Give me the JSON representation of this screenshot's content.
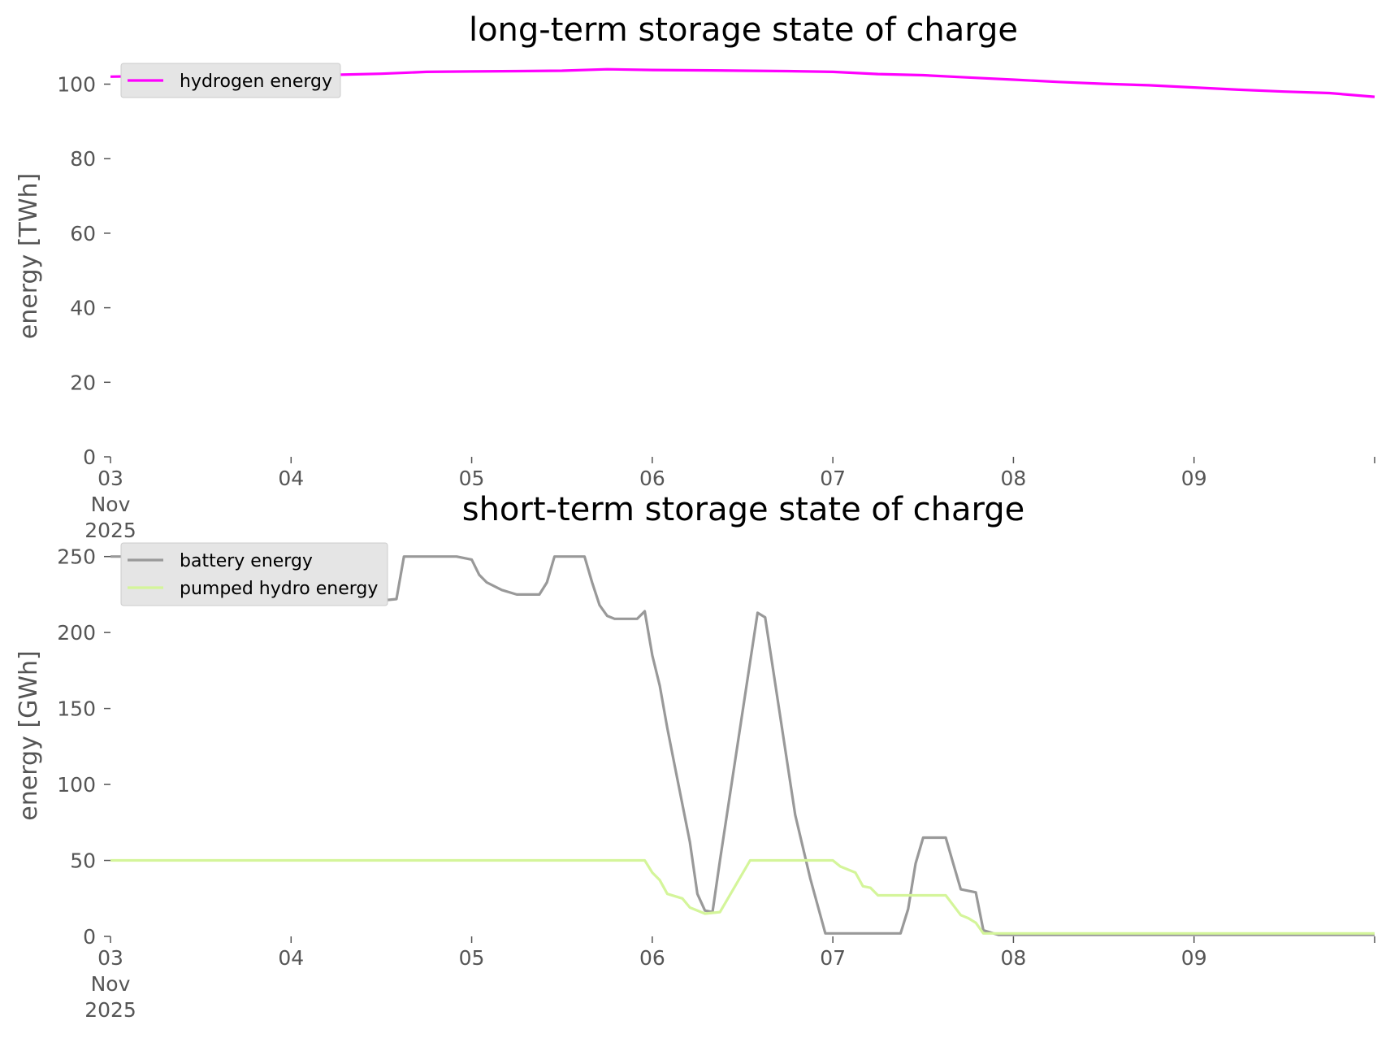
{
  "chart_data": [
    {
      "type": "line",
      "title": "long-term storage state of charge",
      "xlabel": "",
      "ylabel": "energy [TWh]",
      "ylim": [
        0,
        106
      ],
      "yticks": [
        0,
        20,
        40,
        60,
        80,
        100
      ],
      "xlim": [
        "2025-11-03",
        "2025-11-10"
      ],
      "x_ticks": [
        {
          "x": "2025-11-03",
          "label": "03\nNov\n2025"
        },
        {
          "x": "2025-11-04",
          "label": "04"
        },
        {
          "x": "2025-11-05",
          "label": "05"
        },
        {
          "x": "2025-11-06",
          "label": "06"
        },
        {
          "x": "2025-11-07",
          "label": "07"
        },
        {
          "x": "2025-11-08",
          "label": "08"
        },
        {
          "x": "2025-11-09",
          "label": "09"
        },
        {
          "x": "2025-11-10",
          "label": ""
        }
      ],
      "grid": false,
      "legend_position": "top-left",
      "series": [
        {
          "name": "hydrogen energy",
          "color": "#ff00ff",
          "points": [
            [
              "2025-11-03T00:00",
              102.0
            ],
            [
              "2025-11-03T06:00",
              102.2
            ],
            [
              "2025-11-03T12:00",
              102.3
            ],
            [
              "2025-11-03T18:00",
              102.4
            ],
            [
              "2025-11-04T00:00",
              102.4
            ],
            [
              "2025-11-04T06:00",
              102.5
            ],
            [
              "2025-11-04T12:00",
              102.8
            ],
            [
              "2025-11-04T18:00",
              103.3
            ],
            [
              "2025-11-05T00:00",
              103.4
            ],
            [
              "2025-11-05T06:00",
              103.5
            ],
            [
              "2025-11-05T12:00",
              103.6
            ],
            [
              "2025-11-05T18:00",
              104.0
            ],
            [
              "2025-11-06T00:00",
              103.8
            ],
            [
              "2025-11-06T06:00",
              103.7
            ],
            [
              "2025-11-06T12:00",
              103.6
            ],
            [
              "2025-11-06T18:00",
              103.5
            ],
            [
              "2025-11-07T00:00",
              103.3
            ],
            [
              "2025-11-07T06:00",
              102.7
            ],
            [
              "2025-11-07T12:00",
              102.4
            ],
            [
              "2025-11-07T18:00",
              101.8
            ],
            [
              "2025-11-08T00:00",
              101.2
            ],
            [
              "2025-11-08T06:00",
              100.6
            ],
            [
              "2025-11-08T12:00",
              100.1
            ],
            [
              "2025-11-08T18:00",
              99.7
            ],
            [
              "2025-11-09T00:00",
              99.1
            ],
            [
              "2025-11-09T06:00",
              98.5
            ],
            [
              "2025-11-09T12:00",
              98.0
            ],
            [
              "2025-11-09T18:00",
              97.6
            ],
            [
              "2025-11-10T00:00",
              96.6
            ]
          ]
        }
      ]
    },
    {
      "type": "line",
      "title": "short-term storage state of charge",
      "xlabel": "",
      "ylabel": "energy [GWh]",
      "ylim": [
        0,
        260
      ],
      "yticks": [
        0,
        50,
        100,
        150,
        200,
        250
      ],
      "xlim": [
        "2025-11-03",
        "2025-11-10"
      ],
      "x_ticks": [
        {
          "x": "2025-11-03",
          "label": "03\nNov\n2025"
        },
        {
          "x": "2025-11-04",
          "label": "04"
        },
        {
          "x": "2025-11-05",
          "label": "05"
        },
        {
          "x": "2025-11-06",
          "label": "06"
        },
        {
          "x": "2025-11-07",
          "label": "07"
        },
        {
          "x": "2025-11-08",
          "label": "08"
        },
        {
          "x": "2025-11-09",
          "label": "09"
        },
        {
          "x": "2025-11-10",
          "label": ""
        }
      ],
      "grid": false,
      "legend_position": "top-left",
      "series": [
        {
          "name": "battery energy",
          "color": "#999999",
          "points": [
            [
              "2025-11-03T00:00",
              250
            ],
            [
              "2025-11-04T00:00",
              250
            ],
            [
              "2025-11-04T03:00",
              240
            ],
            [
              "2025-11-04T06:00",
              228
            ],
            [
              "2025-11-04T09:00",
              222
            ],
            [
              "2025-11-04T12:00",
              221
            ],
            [
              "2025-11-04T14:00",
              222
            ],
            [
              "2025-11-04T15:00",
              250
            ],
            [
              "2025-11-04T22:00",
              250
            ],
            [
              "2025-11-05T00:00",
              248
            ],
            [
              "2025-11-05T01:00",
              238
            ],
            [
              "2025-11-05T02:00",
              233
            ],
            [
              "2025-11-05T04:00",
              228
            ],
            [
              "2025-11-05T06:00",
              225
            ],
            [
              "2025-11-05T09:00",
              225
            ],
            [
              "2025-11-05T10:00",
              233
            ],
            [
              "2025-11-05T11:00",
              250
            ],
            [
              "2025-11-05T15:00",
              250
            ],
            [
              "2025-11-05T16:00",
              233
            ],
            [
              "2025-11-05T17:00",
              218
            ],
            [
              "2025-11-05T18:00",
              211
            ],
            [
              "2025-11-05T19:00",
              209
            ],
            [
              "2025-11-05T22:00",
              209
            ],
            [
              "2025-11-05T23:00",
              214
            ],
            [
              "2025-11-06T00:00",
              185
            ],
            [
              "2025-11-06T01:00",
              165
            ],
            [
              "2025-11-06T02:00",
              137
            ],
            [
              "2025-11-06T03:00",
              112
            ],
            [
              "2025-11-06T05:00",
              62
            ],
            [
              "2025-11-06T06:00",
              28
            ],
            [
              "2025-11-06T07:00",
              17
            ],
            [
              "2025-11-06T08:00",
              16
            ],
            [
              "2025-11-06T09:00",
              50
            ],
            [
              "2025-11-06T14:00",
              213
            ],
            [
              "2025-11-06T15:00",
              210
            ],
            [
              "2025-11-06T17:00",
              145
            ],
            [
              "2025-11-06T19:00",
              80
            ],
            [
              "2025-11-06T21:00",
              38
            ],
            [
              "2025-11-06T23:00",
              2
            ],
            [
              "2025-11-07T00:00",
              2
            ],
            [
              "2025-11-07T09:00",
              2
            ],
            [
              "2025-11-07T10:00",
              18
            ],
            [
              "2025-11-07T11:00",
              48
            ],
            [
              "2025-11-07T12:00",
              65
            ],
            [
              "2025-11-07T15:00",
              65
            ],
            [
              "2025-11-07T16:00",
              48
            ],
            [
              "2025-11-07T17:00",
              31
            ],
            [
              "2025-11-07T19:00",
              29
            ],
            [
              "2025-11-07T20:00",
              4
            ],
            [
              "2025-11-07T22:00",
              1
            ],
            [
              "2025-11-10T00:00",
              1
            ]
          ]
        },
        {
          "name": "pumped hydro energy",
          "color": "#d4f59a",
          "points": [
            [
              "2025-11-03T00:00",
              50
            ],
            [
              "2025-11-05T23:00",
              50
            ],
            [
              "2025-11-06T00:00",
              42
            ],
            [
              "2025-11-06T01:00",
              37
            ],
            [
              "2025-11-06T02:00",
              28
            ],
            [
              "2025-11-06T04:00",
              25
            ],
            [
              "2025-11-06T05:00",
              19
            ],
            [
              "2025-11-06T07:00",
              15
            ],
            [
              "2025-11-06T09:00",
              16
            ],
            [
              "2025-11-06T13:00",
              50
            ],
            [
              "2025-11-07T00:00",
              50
            ],
            [
              "2025-11-07T01:00",
              46
            ],
            [
              "2025-11-07T03:00",
              42
            ],
            [
              "2025-11-07T04:00",
              33
            ],
            [
              "2025-11-07T05:00",
              32
            ],
            [
              "2025-11-07T06:00",
              27
            ],
            [
              "2025-11-07T15:00",
              27
            ],
            [
              "2025-11-07T17:00",
              14
            ],
            [
              "2025-11-07T18:00",
              12
            ],
            [
              "2025-11-07T19:00",
              9
            ],
            [
              "2025-11-07T20:00",
              2
            ],
            [
              "2025-11-10T00:00",
              2
            ]
          ]
        }
      ]
    }
  ]
}
